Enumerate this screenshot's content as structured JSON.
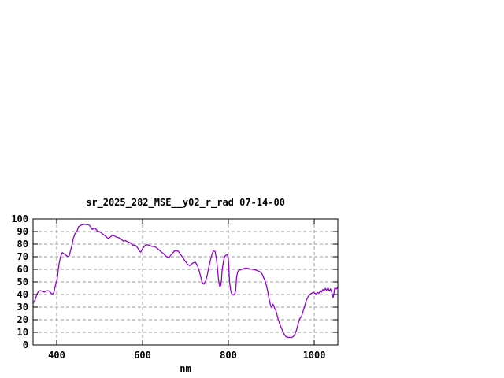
{
  "window": {
    "background": "#ffffff"
  },
  "chart_data": {
    "type": "line",
    "title": "sr_2025_282_MSE__y02_r_rad 07-14-00",
    "xlabel": "nm",
    "ylabel": "",
    "xlim": [
      345,
      1055
    ],
    "ylim": [
      0,
      100
    ],
    "xticks": [
      400,
      600,
      800,
      1000
    ],
    "yticks": [
      0,
      10,
      20,
      30,
      40,
      50,
      60,
      70,
      80,
      90,
      100
    ],
    "grid": true,
    "legend": "none",
    "colors": {
      "line": "#9400D3",
      "grid": "#9e9e9e",
      "border": "#000000",
      "text": "#000000"
    },
    "series": [
      {
        "name": "sr_2025_282_MSE__y02_r_rad",
        "points": [
          [
            345,
            33
          ],
          [
            347,
            34.2
          ],
          [
            349,
            35.2
          ],
          [
            351,
            37
          ],
          [
            353,
            39.4
          ],
          [
            355,
            41
          ],
          [
            358,
            42.5
          ],
          [
            362,
            43.1
          ],
          [
            366,
            42.7
          ],
          [
            369,
            42.1
          ],
          [
            372,
            42.1
          ],
          [
            375,
            42.7
          ],
          [
            379,
            43.1
          ],
          [
            383,
            42.7
          ],
          [
            387,
            41
          ],
          [
            390,
            40.4
          ],
          [
            392,
            40.8
          ],
          [
            394,
            42.5
          ],
          [
            396,
            45.6
          ],
          [
            398,
            48.8
          ],
          [
            400,
            50.8
          ],
          [
            402,
            54.5
          ],
          [
            404,
            61
          ],
          [
            406,
            65
          ],
          [
            409,
            70.2
          ],
          [
            413,
            73.3
          ],
          [
            418,
            72.2
          ],
          [
            422,
            71
          ],
          [
            426,
            70.2
          ],
          [
            429,
            70.7
          ],
          [
            435,
            78.4
          ],
          [
            438,
            83.6
          ],
          [
            442,
            87.8
          ],
          [
            448,
            90.9
          ],
          [
            451,
            93.8
          ],
          [
            455,
            94.8
          ],
          [
            460,
            95.4
          ],
          [
            465,
            95.8
          ],
          [
            470,
            95.4
          ],
          [
            475,
            95.4
          ],
          [
            479,
            93.8
          ],
          [
            483,
            91.7
          ],
          [
            487,
            92.7
          ],
          [
            491,
            92.1
          ],
          [
            494,
            90.6
          ],
          [
            501,
            89.6
          ],
          [
            508,
            87.9
          ],
          [
            516,
            85.8
          ],
          [
            519,
            84.4
          ],
          [
            525,
            85.5
          ],
          [
            530,
            87.1
          ],
          [
            538,
            85.8
          ],
          [
            545,
            85
          ],
          [
            549,
            84.4
          ],
          [
            552,
            83.3
          ],
          [
            556,
            82.3
          ],
          [
            560,
            82.9
          ],
          [
            563,
            82.3
          ],
          [
            567,
            81.7
          ],
          [
            571,
            81.2
          ],
          [
            574,
            80.2
          ],
          [
            578,
            79.2
          ],
          [
            584,
            79
          ],
          [
            589,
            76.8
          ],
          [
            593,
            74.3
          ],
          [
            596,
            73.7
          ],
          [
            600,
            76.4
          ],
          [
            606,
            79
          ],
          [
            611,
            79.5
          ],
          [
            617,
            78.9
          ],
          [
            622,
            78.2
          ],
          [
            628,
            78
          ],
          [
            633,
            77
          ],
          [
            639,
            75.3
          ],
          [
            644,
            73.7
          ],
          [
            650,
            72.2
          ],
          [
            653,
            70.8
          ],
          [
            661,
            69.1
          ],
          [
            668,
            72.2
          ],
          [
            675,
            74.7
          ],
          [
            683,
            74.5
          ],
          [
            690,
            71.2
          ],
          [
            697,
            67.7
          ],
          [
            705,
            64
          ],
          [
            710,
            62.9
          ],
          [
            717,
            65
          ],
          [
            723,
            65.7
          ],
          [
            728,
            62.9
          ],
          [
            732,
            58.8
          ],
          [
            736,
            53.6
          ],
          [
            739,
            49.5
          ],
          [
            743,
            48.4
          ],
          [
            747,
            50.5
          ],
          [
            751,
            55.7
          ],
          [
            754,
            60.9
          ],
          [
            758,
            67.1
          ],
          [
            762,
            72.2
          ],
          [
            765,
            74.7
          ],
          [
            769,
            74.3
          ],
          [
            772,
            69.1
          ],
          [
            774,
            62.9
          ],
          [
            776,
            55.7
          ],
          [
            778,
            49.5
          ],
          [
            780,
            46.4
          ],
          [
            782,
            47
          ],
          [
            784,
            51.6
          ],
          [
            785,
            57.8
          ],
          [
            787,
            62.9
          ],
          [
            789,
            67.1
          ],
          [
            791,
            69.8
          ],
          [
            794,
            71.2
          ],
          [
            798,
            71.8
          ],
          [
            800,
            68
          ],
          [
            801,
            62
          ],
          [
            802,
            54.7
          ],
          [
            803,
            49.5
          ],
          [
            805,
            44.3
          ],
          [
            807,
            41.2
          ],
          [
            809,
            40
          ],
          [
            812,
            39.7
          ],
          [
            815,
            40.5
          ],
          [
            817,
            43.3
          ],
          [
            818,
            48.4
          ],
          [
            819,
            53.6
          ],
          [
            821,
            57.1
          ],
          [
            823,
            58.8
          ],
          [
            826,
            59.4
          ],
          [
            831,
            60
          ],
          [
            836,
            60.6
          ],
          [
            841,
            61
          ],
          [
            846,
            60.7
          ],
          [
            851,
            60.3
          ],
          [
            856,
            60
          ],
          [
            861,
            59.7
          ],
          [
            866,
            59.2
          ],
          [
            871,
            58.5
          ],
          [
            876,
            57.5
          ],
          [
            879,
            56
          ],
          [
            882,
            53.5
          ],
          [
            885,
            51.6
          ],
          [
            888,
            48
          ],
          [
            890,
            45
          ],
          [
            892,
            42
          ],
          [
            894,
            38
          ],
          [
            896,
            35
          ],
          [
            898,
            32
          ],
          [
            900,
            29.9
          ],
          [
            902,
            30.9
          ],
          [
            904,
            32.3
          ],
          [
            906,
            30.9
          ],
          [
            908,
            28.8
          ],
          [
            910,
            27.7
          ],
          [
            912,
            25.7
          ],
          [
            914,
            23
          ],
          [
            916,
            20.5
          ],
          [
            918,
            18.4
          ],
          [
            920,
            16.3
          ],
          [
            922,
            14.7
          ],
          [
            924,
            13
          ],
          [
            926,
            11.4
          ],
          [
            928,
            9.7
          ],
          [
            930,
            8.5
          ],
          [
            932,
            7.5
          ],
          [
            934,
            6.6
          ],
          [
            937,
            6.1
          ],
          [
            941,
            6
          ],
          [
            945,
            6
          ],
          [
            949,
            6.2
          ],
          [
            952,
            7
          ],
          [
            955,
            8.5
          ],
          [
            958,
            11
          ],
          [
            960,
            13.5
          ],
          [
            962,
            16
          ],
          [
            964,
            18.5
          ],
          [
            966,
            20.5
          ],
          [
            968,
            21.8
          ],
          [
            970,
            22.3
          ],
          [
            972,
            24.5
          ],
          [
            974,
            26.5
          ],
          [
            976,
            28.8
          ],
          [
            978,
            31
          ],
          [
            980,
            33.5
          ],
          [
            982,
            35.5
          ],
          [
            984,
            37
          ],
          [
            986,
            38.5
          ],
          [
            989,
            39.8
          ],
          [
            992,
            40.6
          ],
          [
            995,
            41.2
          ],
          [
            998,
            41.8
          ],
          [
            1002,
            41
          ],
          [
            1005,
            40.5
          ],
          [
            1008,
            41.6
          ],
          [
            1011,
            41
          ],
          [
            1014,
            43
          ],
          [
            1017,
            42
          ],
          [
            1020,
            44
          ],
          [
            1023,
            42.8
          ],
          [
            1026,
            44.9
          ],
          [
            1029,
            43.3
          ],
          [
            1032,
            45.3
          ],
          [
            1035,
            42.8
          ],
          [
            1038,
            44.5
          ],
          [
            1041,
            41.5
          ],
          [
            1044,
            37.5
          ],
          [
            1046,
            41
          ],
          [
            1048,
            45.3
          ],
          [
            1051,
            44.3
          ],
          [
            1053,
            45
          ],
          [
            1055,
            45.8
          ]
        ]
      }
    ]
  }
}
